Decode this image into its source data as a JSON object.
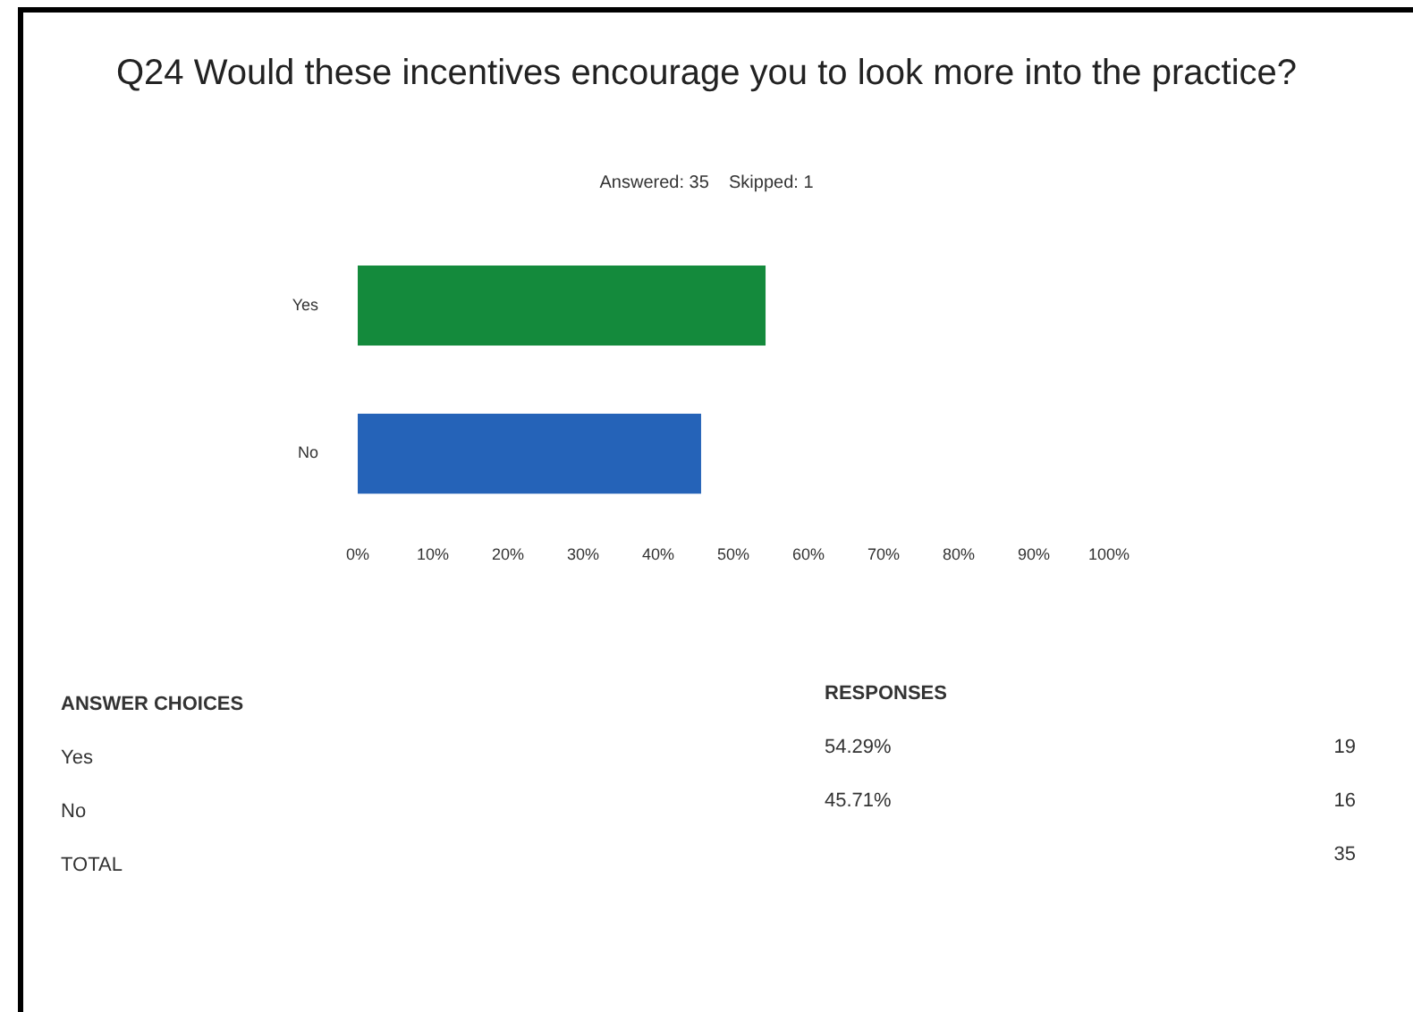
{
  "chart_data": {
    "type": "bar",
    "orientation": "horizontal",
    "title": "Q24 Would these incentives encourage you to look more into the practice?",
    "subtitle": "Answered: 35    Skipped: 1",
    "categories": [
      "Yes",
      "No"
    ],
    "values": [
      54.29,
      45.71
    ],
    "colors": [
      "#148a3c",
      "#2563b8"
    ],
    "xlim": [
      0,
      100
    ],
    "xticks": [
      {
        "value": 0,
        "label": "0%"
      },
      {
        "value": 10,
        "label": "10%"
      },
      {
        "value": 20,
        "label": "20%"
      },
      {
        "value": 30,
        "label": "30%"
      },
      {
        "value": 40,
        "label": "40%"
      },
      {
        "value": 50,
        "label": "50%"
      },
      {
        "value": 60,
        "label": "60%"
      },
      {
        "value": 70,
        "label": "70%"
      },
      {
        "value": 80,
        "label": "80%"
      },
      {
        "value": 90,
        "label": "90%"
      },
      {
        "value": 100,
        "label": "100%"
      }
    ],
    "grid": false,
    "annotations": [
      "ANSWER CHOICES",
      "RESPONSES",
      "54.29%",
      "19",
      "45.71%",
      "16",
      "TOTAL",
      "35"
    ]
  }
}
